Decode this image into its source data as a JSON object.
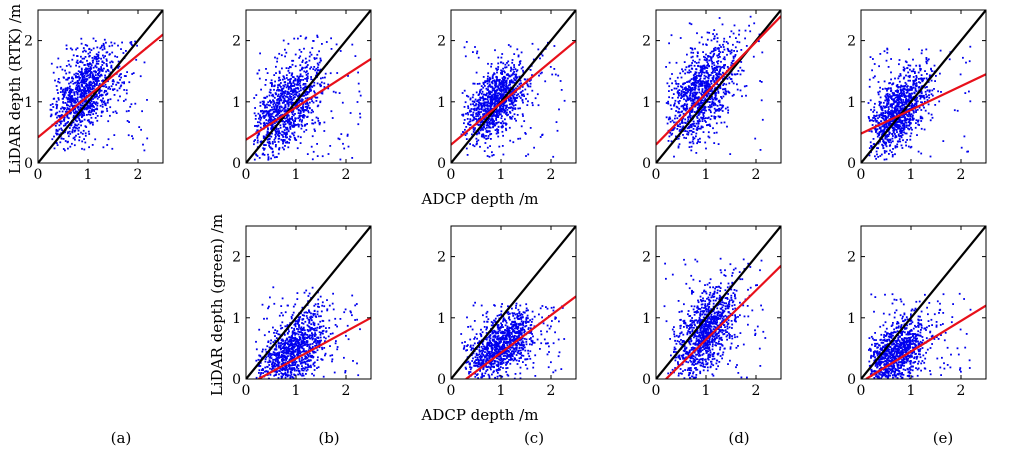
{
  "figure": {
    "xlabel": "ADCP depth /m",
    "ylabel_top": "LiDAR depth (RTK) /m",
    "ylabel_bottom": "LiDAR depth (green) /m",
    "panel_labels": [
      "(a)",
      "(b)",
      "(c)",
      "(d)",
      "(e)"
    ],
    "point_color": "#0000ee",
    "fit_color": "#e8101a",
    "identity_color": "#000000"
  },
  "chart_data": [
    {
      "type": "scatter",
      "row": "top",
      "col": 0,
      "xlim": [
        0,
        2.5
      ],
      "ylim": [
        0,
        2.5
      ],
      "xticks": [
        0,
        1,
        2
      ],
      "yticks": [
        0,
        1,
        2
      ],
      "fit_line": [
        [
          0,
          0.42
        ],
        [
          2.5,
          2.1
        ]
      ],
      "identity_line": [
        [
          0,
          0
        ],
        [
          2.5,
          2.5
        ]
      ],
      "cloud": {
        "center": [
          0.9,
          1.1
        ],
        "spread": [
          0.35,
          0.4
        ],
        "x_range": [
          0.25,
          2.2
        ],
        "y_range": [
          0.2,
          2.05
        ]
      }
    },
    {
      "type": "scatter",
      "row": "top",
      "col": 1,
      "xlim": [
        0,
        2.5
      ],
      "ylim": [
        0,
        2.5
      ],
      "xticks": [
        0,
        1,
        2
      ],
      "yticks": [
        0,
        1,
        2
      ],
      "fit_line": [
        [
          0,
          0.38
        ],
        [
          2.5,
          1.7
        ]
      ],
      "identity_line": [
        [
          0,
          0
        ],
        [
          2.5,
          2.5
        ]
      ],
      "cloud": {
        "center": [
          0.8,
          0.9
        ],
        "spread": [
          0.35,
          0.4
        ],
        "x_range": [
          0.15,
          2.3
        ],
        "y_range": [
          0.05,
          2.1
        ]
      }
    },
    {
      "type": "scatter",
      "row": "top",
      "col": 2,
      "xlim": [
        0,
        2.5
      ],
      "ylim": [
        0,
        2.5
      ],
      "xticks": [
        0,
        1,
        2
      ],
      "yticks": [
        0,
        1,
        2
      ],
      "fit_line": [
        [
          0,
          0.3
        ],
        [
          2.5,
          2.0
        ]
      ],
      "identity_line": [
        [
          0,
          0
        ],
        [
          2.5,
          2.5
        ]
      ],
      "cloud": {
        "center": [
          0.9,
          1.0
        ],
        "spread": [
          0.3,
          0.32
        ],
        "x_range": [
          0.2,
          2.3
        ],
        "y_range": [
          0.1,
          2.0
        ]
      }
    },
    {
      "type": "scatter",
      "row": "top",
      "col": 3,
      "xlim": [
        0,
        2.5
      ],
      "ylim": [
        0,
        2.5
      ],
      "xticks": [
        0,
        1,
        2
      ],
      "yticks": [
        0,
        1,
        2
      ],
      "fit_line": [
        [
          0,
          0.3
        ],
        [
          2.5,
          2.4
        ]
      ],
      "identity_line": [
        [
          0,
          0
        ],
        [
          2.5,
          2.5
        ]
      ],
      "cloud": {
        "center": [
          0.9,
          1.15
        ],
        "spread": [
          0.35,
          0.42
        ],
        "x_range": [
          0.2,
          2.2
        ],
        "y_range": [
          0.1,
          2.4
        ]
      }
    },
    {
      "type": "scatter",
      "row": "top",
      "col": 4,
      "xlim": [
        0,
        2.5
      ],
      "ylim": [
        0,
        2.5
      ],
      "xticks": [
        0,
        1,
        2
      ],
      "yticks": [
        0,
        1,
        2
      ],
      "fit_line": [
        [
          0,
          0.48
        ],
        [
          2.5,
          1.45
        ]
      ],
      "identity_line": [
        [
          0,
          0
        ],
        [
          2.5,
          2.5
        ]
      ],
      "cloud": {
        "center": [
          0.75,
          0.85
        ],
        "spread": [
          0.3,
          0.35
        ],
        "x_range": [
          0.15,
          2.2
        ],
        "y_range": [
          0.05,
          1.9
        ]
      }
    },
    {
      "type": "scatter",
      "row": "bottom",
      "col": 1,
      "xlim": [
        0,
        2.5
      ],
      "ylim": [
        0,
        2.5
      ],
      "xticks": [
        0,
        1,
        2
      ],
      "yticks": [
        0,
        1,
        2
      ],
      "fit_line": [
        [
          0.25,
          0.0
        ],
        [
          2.5,
          1.0
        ]
      ],
      "identity_line": [
        [
          0,
          0
        ],
        [
          2.5,
          2.5
        ]
      ],
      "cloud": {
        "center": [
          0.95,
          0.45
        ],
        "spread": [
          0.35,
          0.35
        ],
        "x_range": [
          0.2,
          2.3
        ],
        "y_range": [
          0.0,
          1.5
        ]
      }
    },
    {
      "type": "scatter",
      "row": "bottom",
      "col": 2,
      "xlim": [
        0,
        2.5
      ],
      "ylim": [
        0,
        2.5
      ],
      "xticks": [
        0,
        1,
        2
      ],
      "yticks": [
        0,
        1,
        2
      ],
      "fit_line": [
        [
          0.3,
          0.0
        ],
        [
          2.5,
          1.35
        ]
      ],
      "identity_line": [
        [
          0,
          0
        ],
        [
          2.5,
          2.5
        ]
      ],
      "cloud": {
        "center": [
          1.0,
          0.55
        ],
        "spread": [
          0.35,
          0.28
        ],
        "x_range": [
          0.2,
          2.3
        ],
        "y_range": [
          0.0,
          1.25
        ]
      }
    },
    {
      "type": "scatter",
      "row": "bottom",
      "col": 3,
      "xlim": [
        0,
        2.5
      ],
      "ylim": [
        0,
        2.5
      ],
      "xticks": [
        0,
        1,
        2
      ],
      "yticks": [
        0,
        1,
        2
      ],
      "fit_line": [
        [
          0.2,
          0.0
        ],
        [
          2.5,
          1.85
        ]
      ],
      "identity_line": [
        [
          0,
          0
        ],
        [
          2.5,
          2.5
        ]
      ],
      "cloud": {
        "center": [
          1.0,
          0.75
        ],
        "spread": [
          0.32,
          0.38
        ],
        "x_range": [
          0.15,
          2.2
        ],
        "y_range": [
          0.0,
          2.0
        ]
      }
    },
    {
      "type": "scatter",
      "row": "bottom",
      "col": 4,
      "xlim": [
        0,
        2.5
      ],
      "ylim": [
        0,
        2.5
      ],
      "xticks": [
        0,
        1,
        2
      ],
      "yticks": [
        0,
        1,
        2
      ],
      "fit_line": [
        [
          0.1,
          0.0
        ],
        [
          2.5,
          1.2
        ]
      ],
      "identity_line": [
        [
          0,
          0
        ],
        [
          2.5,
          2.5
        ]
      ],
      "cloud": {
        "center": [
          0.7,
          0.4
        ],
        "spread": [
          0.32,
          0.3
        ],
        "x_range": [
          0.15,
          2.2
        ],
        "y_range": [
          0.0,
          1.4
        ]
      }
    }
  ]
}
